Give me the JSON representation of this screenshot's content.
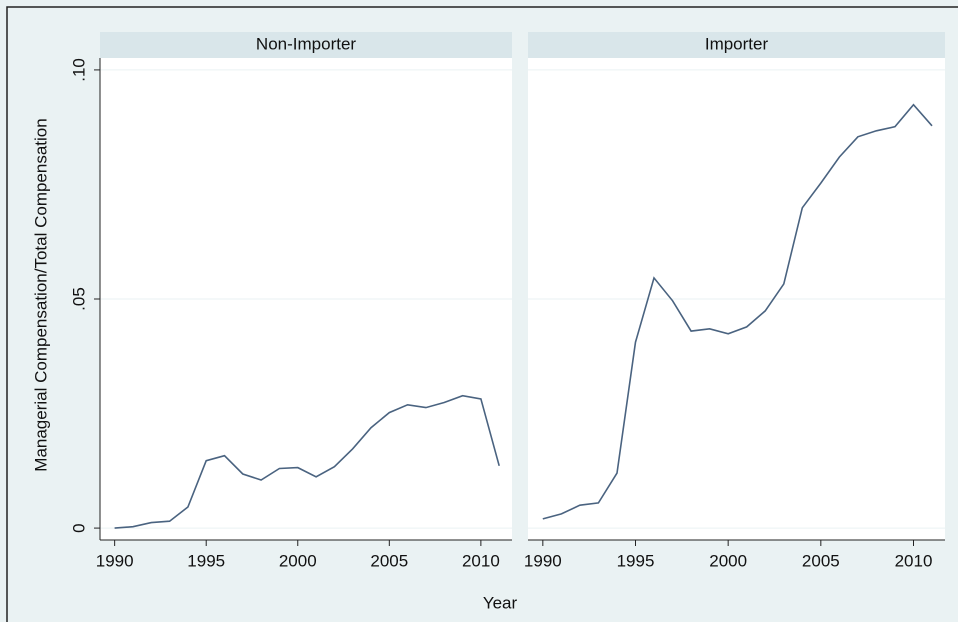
{
  "chart_data": [
    {
      "type": "line",
      "title": "Non-Importer",
      "x": [
        1990,
        1991,
        1992,
        1993,
        1994,
        1995,
        1996,
        1997,
        1998,
        1999,
        2000,
        2001,
        2002,
        2003,
        2004,
        2005,
        2006,
        2007,
        2008,
        2009,
        2010,
        2011
      ],
      "values": [
        0.0,
        0.0003,
        0.0012,
        0.0015,
        0.0046,
        0.0147,
        0.0158,
        0.0118,
        0.0105,
        0.013,
        0.0132,
        0.0112,
        0.0134,
        0.0173,
        0.0219,
        0.0252,
        0.0269,
        0.0263,
        0.0274,
        0.0289,
        0.0282,
        0.0136
      ],
      "color": "#4a6380",
      "xlim": [
        1989.2,
        2011.7
      ],
      "xticks": [
        1990,
        1995,
        2000,
        2005,
        2010
      ],
      "ylim": [
        -0.0026,
        0.1026
      ],
      "yticks": [
        0,
        {
          "value": 0.05,
          "label": ".05"
        },
        {
          "value": 0.1,
          "label": ".10"
        }
      ],
      "grid": true
    },
    {
      "type": "line",
      "title": "Importer",
      "x": [
        1990,
        1991,
        1992,
        1993,
        1994,
        1995,
        1996,
        1997,
        1998,
        1999,
        2000,
        2001,
        2002,
        2003,
        2004,
        2005,
        2006,
        2007,
        2008,
        2009,
        2010,
        2011
      ],
      "values": [
        0.002,
        0.0031,
        0.005,
        0.0055,
        0.012,
        0.0406,
        0.0546,
        0.0496,
        0.043,
        0.0435,
        0.0424,
        0.0439,
        0.0474,
        0.0533,
        0.0699,
        0.0753,
        0.081,
        0.0854,
        0.0867,
        0.0876,
        0.0924,
        0.0878
      ],
      "color": "#4a6380",
      "xlim": [
        1989.2,
        2011.7
      ],
      "xticks": [
        1990,
        1995,
        2000,
        2005,
        2010
      ],
      "ylim": [
        -0.0026,
        0.1026
      ],
      "grid": true
    }
  ],
  "axis_titles": {
    "x": "Year",
    "y": "Managerial Compensation/Total Compensation"
  }
}
